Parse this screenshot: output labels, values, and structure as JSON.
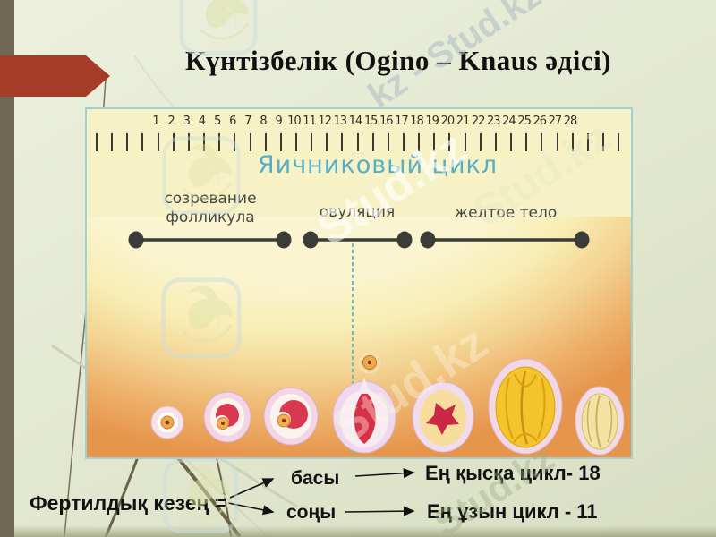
{
  "slide": {
    "title": "Күнтізбелік (Ogino – Knaus әдісі)"
  },
  "cycle_diagram": {
    "heading": "Яичниковый цикл",
    "day_numbers": [
      "1",
      "2",
      "3",
      "4",
      "5",
      "6",
      "7",
      "8",
      "9",
      "10",
      "11",
      "12",
      "13",
      "14",
      "15",
      "16",
      "17",
      "18",
      "19",
      "20",
      "21",
      "22",
      "23",
      "24",
      "25",
      "26",
      "27",
      "28"
    ],
    "phases": [
      {
        "label": "созревание фолликула"
      },
      {
        "label": "овуляция"
      },
      {
        "label": "желтое тело"
      }
    ]
  },
  "fertile_note": {
    "lead": "Фертилдық кезең =",
    "branches": [
      {
        "point": "басы",
        "rule": "Ең қысқа цикл- 18"
      },
      {
        "point": "соңы",
        "rule": "Ең ұзын цикл - 11"
      }
    ]
  },
  "watermarks": {
    "brand": "Stud.kz",
    "brand_repeat": "kz - Stud.kz"
  },
  "colors": {
    "accent_arrow": "#a53c28",
    "side_bar": "#6f6752",
    "background": "#e4e9d2",
    "cycle_heading": "#55aec6",
    "panel_yellow": "#f7f2c5",
    "panel_orange": "#e6954c",
    "line_dark": "#3b3b37"
  }
}
